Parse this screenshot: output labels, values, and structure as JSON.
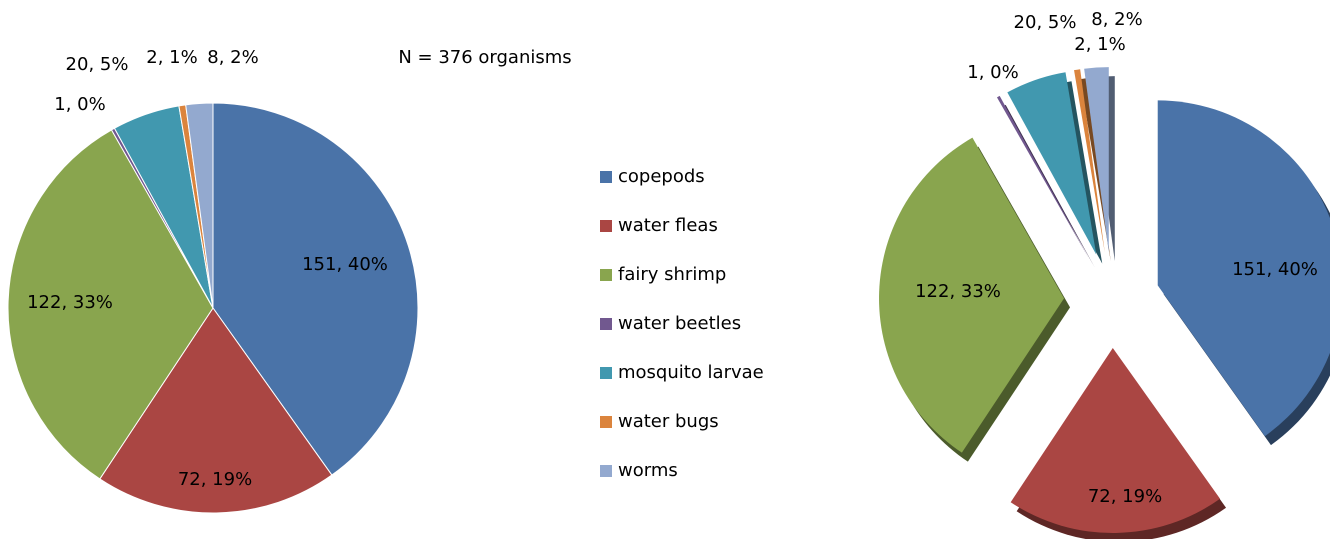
{
  "chart_data": [
    {
      "type": "pie",
      "annotation": "N = 376 organisms",
      "categories": [
        "copepods",
        "water fleas",
        "fairy shrimp",
        "water beetles",
        "mosquito larvae",
        "water bugs",
        "worms"
      ],
      "values": [
        151,
        72,
        122,
        1,
        20,
        2,
        8
      ],
      "value_labels": [
        "151, 40%",
        "72, 19%",
        "122, 33%",
        "1, 0%",
        "20, 5%",
        "2, 1%",
        "8, 2%"
      ],
      "colors": [
        "#4A73A8",
        "#AA4643",
        "#89A54E",
        "#71588F",
        "#4198AF",
        "#DB843D",
        "#93A9CF"
      ],
      "legend": "right"
    },
    {
      "type": "pie",
      "values": [
        151,
        72,
        122,
        1,
        20,
        2,
        8
      ],
      "value_labels": [
        "151, 40%",
        "72, 19%",
        "122, 33%",
        "1, 0%",
        "20, 5%",
        "2, 1%",
        "8, 2%"
      ],
      "colors": [
        "#4A73A8",
        "#AA4643",
        "#89A54E",
        "#71588F",
        "#4198AF",
        "#DB843D",
        "#93A9CF"
      ],
      "exploded": true,
      "three_d": true
    }
  ]
}
